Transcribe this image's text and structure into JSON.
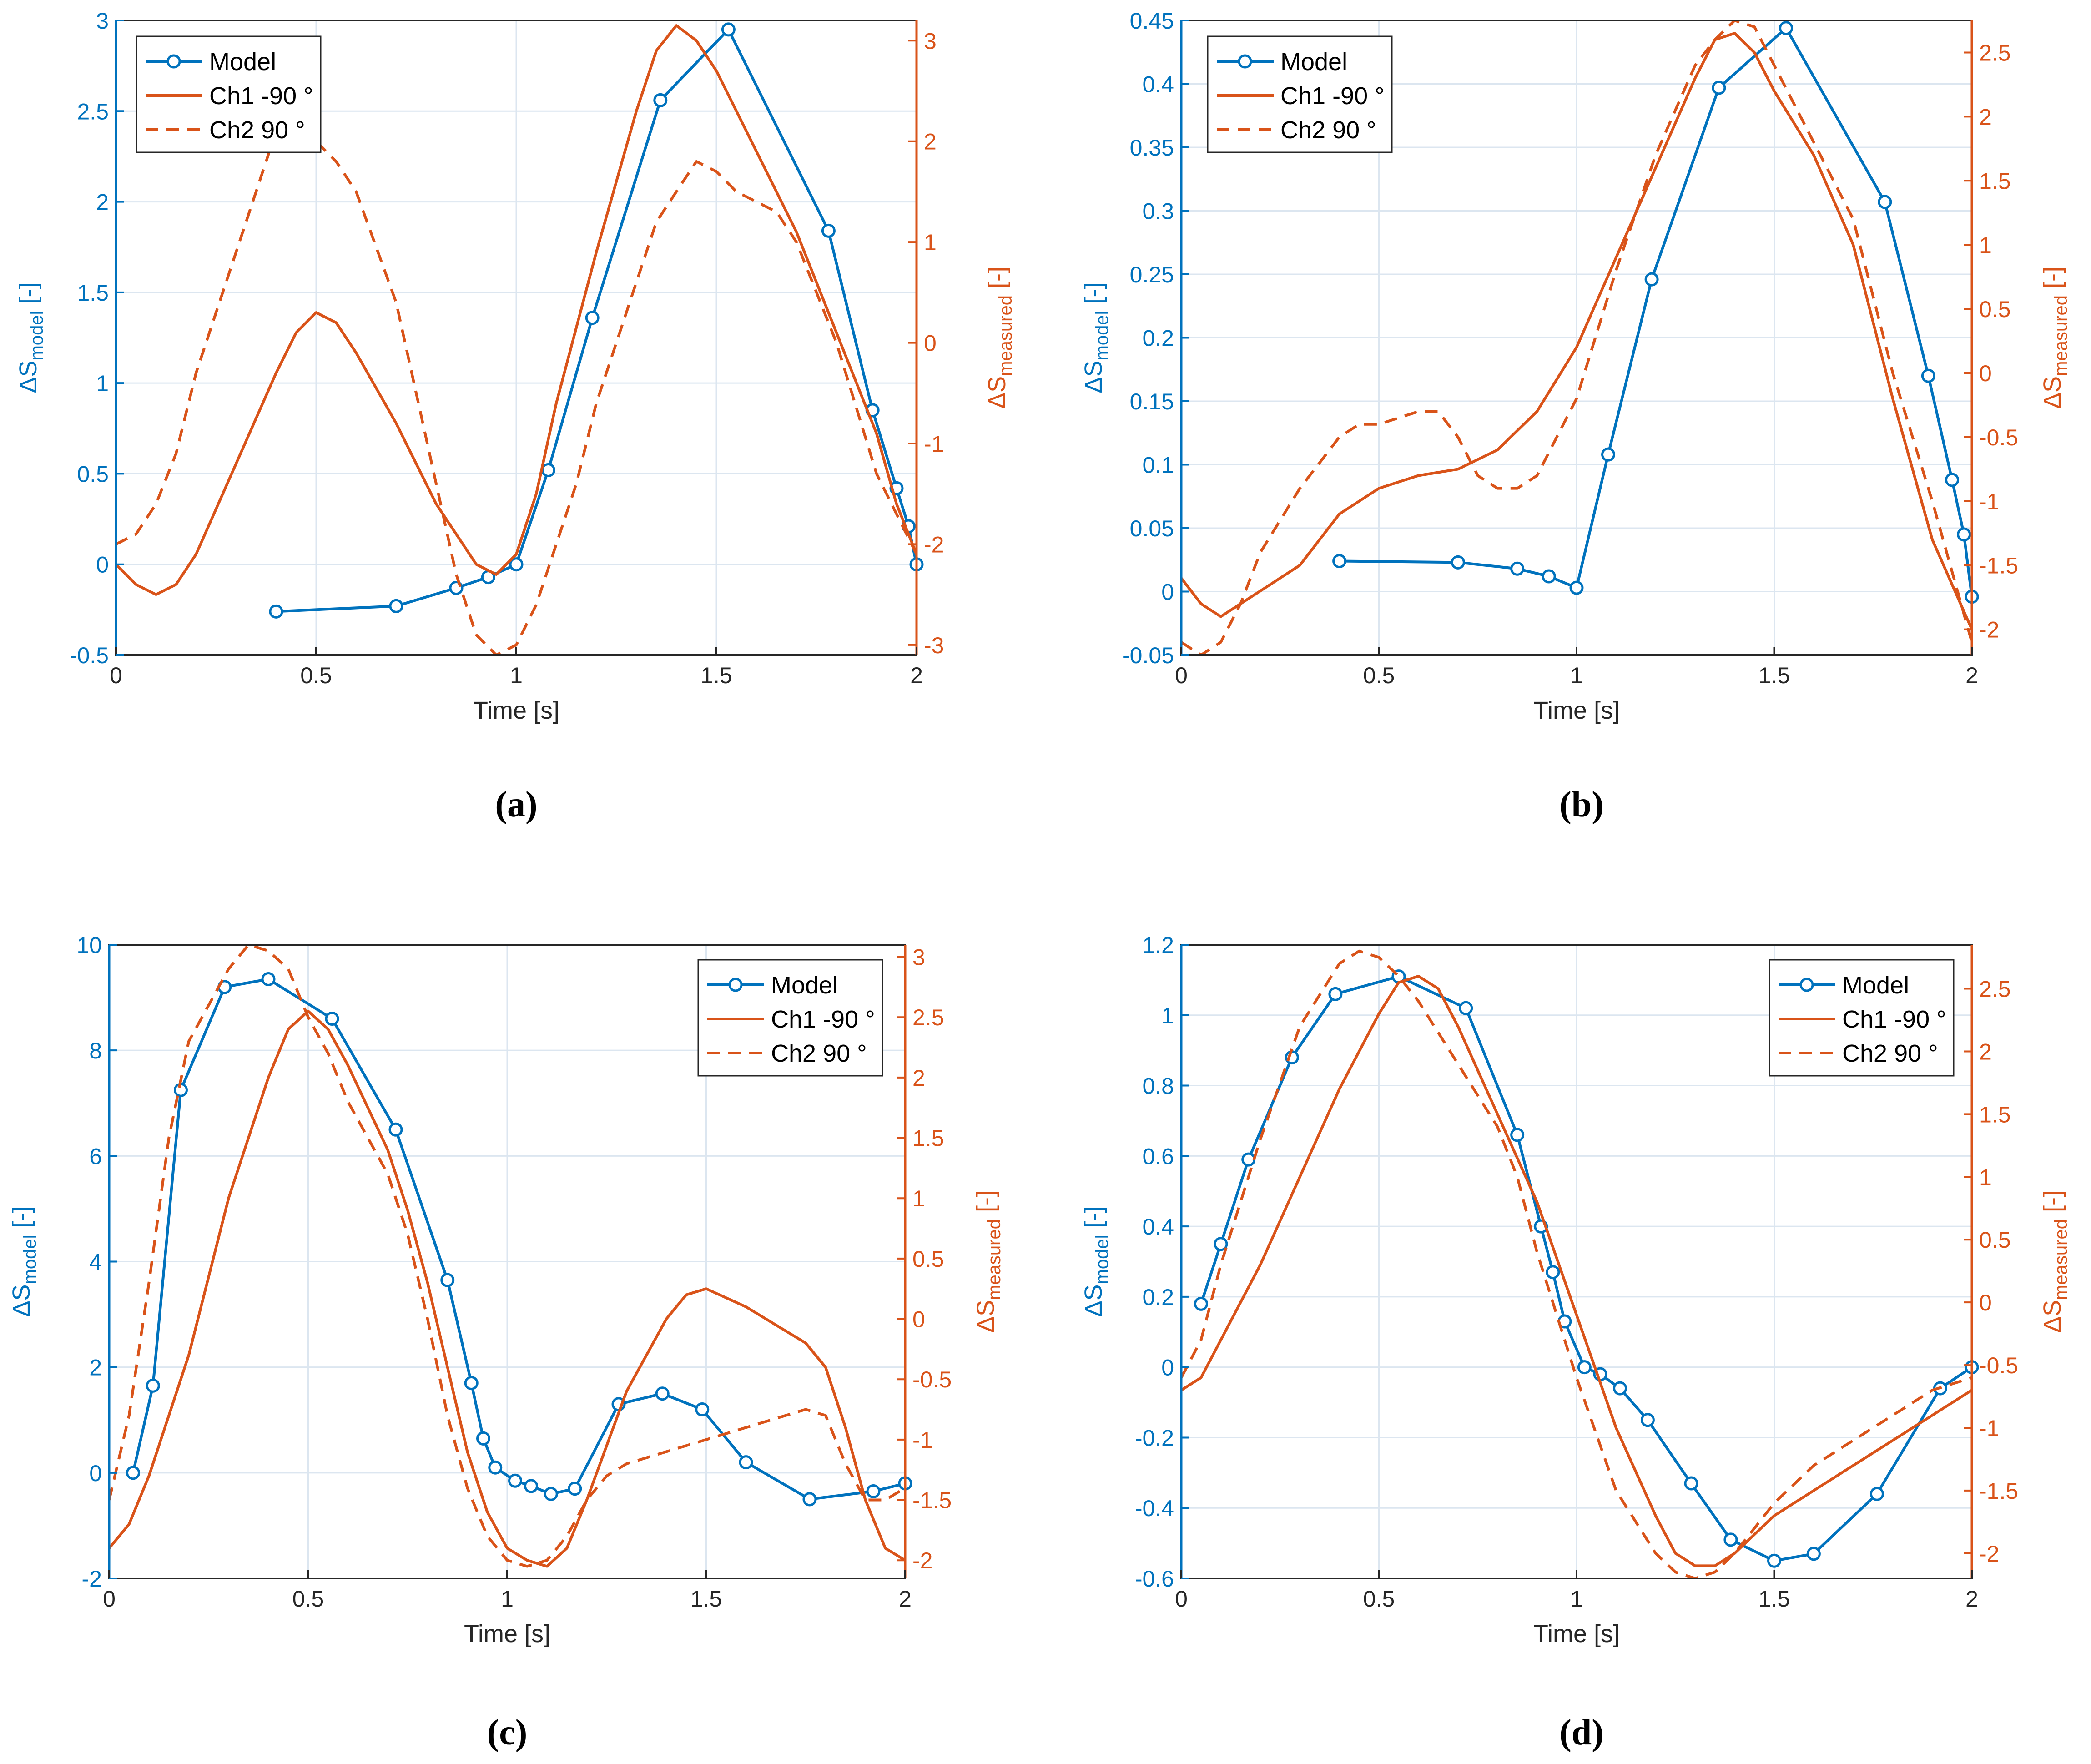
{
  "colors": {
    "model": "#0072BD",
    "measured": "#D95319",
    "grid": "#DCE6F0",
    "axis": "#262626"
  },
  "chart_data": [
    {
      "type": "line",
      "panel": "(a)",
      "xlabel": "Time [s]",
      "ylabel_left": "ΔS",
      "ylabel_left_sub": "model",
      "ylabel_right": "ΔS",
      "ylabel_right_sub": "measured",
      "unit": "[-]",
      "xlim": [
        0,
        2
      ],
      "xticks": [
        0,
        0.5,
        1,
        1.5,
        2
      ],
      "xtick_labels": [
        "0",
        "0.5",
        "1",
        "1.5",
        "2"
      ],
      "ylim_left": [
        -0.5,
        3
      ],
      "yticks_left": [
        -0.5,
        0,
        0.5,
        1,
        1.5,
        2,
        2.5,
        3
      ],
      "ytick_labels_left": [
        "-0.5",
        "0",
        "0.5",
        "1",
        "1.5",
        "2",
        "2.5",
        "3"
      ],
      "ylim_right": [
        -3.1,
        3.2
      ],
      "yticks_right": [
        -3,
        -2,
        -1,
        0,
        1,
        2,
        3
      ],
      "ytick_labels_right": [
        "-3",
        "-2",
        "-1",
        "0",
        "1",
        "2",
        "3"
      ],
      "legend_position": "top-left",
      "legend": [
        "Model",
        "Ch1 -90 °",
        "Ch2  90 °"
      ],
      "series": [
        {
          "name": "Model",
          "axis": "left",
          "style": "line-marker",
          "x": [
            0.4,
            0.7,
            0.85,
            0.93,
            1.0,
            1.08,
            1.19,
            1.36,
            1.53,
            1.78,
            1.89,
            1.95,
            1.98,
            2.0
          ],
          "y": [
            -0.26,
            -0.23,
            -0.13,
            -0.07,
            0.0,
            0.52,
            1.36,
            2.56,
            2.95,
            1.84,
            0.85,
            0.42,
            0.21,
            0.0
          ]
        },
        {
          "name": "Ch1 -90 °",
          "axis": "right",
          "style": "solid",
          "x": [
            0,
            0.05,
            0.1,
            0.15,
            0.2,
            0.3,
            0.4,
            0.45,
            0.5,
            0.55,
            0.6,
            0.7,
            0.8,
            0.85,
            0.9,
            0.95,
            1.0,
            1.05,
            1.1,
            1.2,
            1.3,
            1.35,
            1.4,
            1.45,
            1.5,
            1.6,
            1.7,
            1.8,
            1.9,
            1.95,
            2.0
          ],
          "y": [
            -2.2,
            -2.4,
            -2.5,
            -2.4,
            -2.1,
            -1.2,
            -0.3,
            0.1,
            0.3,
            0.2,
            -0.1,
            -0.8,
            -1.6,
            -1.9,
            -2.2,
            -2.3,
            -2.1,
            -1.5,
            -0.6,
            0.9,
            2.3,
            2.9,
            3.15,
            3.0,
            2.7,
            1.9,
            1.1,
            0.1,
            -0.9,
            -1.6,
            -2.1
          ]
        },
        {
          "name": "Ch2  90 °",
          "axis": "right",
          "style": "dashed",
          "x": [
            0,
            0.05,
            0.1,
            0.15,
            0.2,
            0.25,
            0.3,
            0.35,
            0.4,
            0.45,
            0.5,
            0.55,
            0.6,
            0.7,
            0.75,
            0.8,
            0.85,
            0.9,
            0.95,
            1.0,
            1.05,
            1.1,
            1.15,
            1.2,
            1.3,
            1.35,
            1.4,
            1.45,
            1.5,
            1.55,
            1.6,
            1.65,
            1.7,
            1.8,
            1.9,
            2.0
          ],
          "y": [
            -2.0,
            -1.9,
            -1.6,
            -1.1,
            -0.3,
            0.3,
            0.9,
            1.5,
            2.1,
            2.2,
            2.0,
            1.8,
            1.5,
            0.4,
            -0.5,
            -1.4,
            -2.3,
            -2.9,
            -3.1,
            -3.0,
            -2.6,
            -2.0,
            -1.4,
            -0.6,
            0.6,
            1.2,
            1.5,
            1.8,
            1.7,
            1.5,
            1.4,
            1.3,
            1.0,
            0.0,
            -1.3,
            -2.1
          ]
        }
      ]
    },
    {
      "type": "line",
      "panel": "(b)",
      "xlabel": "Time [s]",
      "ylabel_left": "ΔS",
      "ylabel_left_sub": "model",
      "ylabel_right": "ΔS",
      "ylabel_right_sub": "measured",
      "unit": "[-]",
      "xlim": [
        0,
        2
      ],
      "xticks": [
        0,
        0.5,
        1,
        1.5,
        2
      ],
      "xtick_labels": [
        "0",
        "0.5",
        "1",
        "1.5",
        "2"
      ],
      "ylim_left": [
        -0.05,
        0.45
      ],
      "yticks_left": [
        -0.05,
        0,
        0.05,
        0.1,
        0.15,
        0.2,
        0.25,
        0.3,
        0.35,
        0.4,
        0.45
      ],
      "ytick_labels_left": [
        "-0.05",
        "0",
        "0.05",
        "0.1",
        "0.15",
        "0.2",
        "0.25",
        "0.3",
        "0.35",
        "0.4",
        "0.45"
      ],
      "ylim_right": [
        -2.2,
        2.75
      ],
      "yticks_right": [
        -2,
        -1.5,
        -1,
        -0.5,
        0,
        0.5,
        1,
        1.5,
        2,
        2.5
      ],
      "ytick_labels_right": [
        "-2",
        "-1.5",
        "-1",
        "-0.5",
        "0",
        "0.5",
        "1",
        "1.5",
        "2",
        "2.5"
      ],
      "legend_position": "top-left",
      "legend": [
        "Model",
        "Ch1 -90 °",
        "Ch2  90 °"
      ],
      "series": [
        {
          "name": "Model",
          "axis": "left",
          "style": "line-marker",
          "x": [
            0.4,
            0.7,
            0.85,
            0.93,
            1.0,
            1.08,
            1.19,
            1.36,
            1.53,
            1.78,
            1.89,
            1.95,
            1.98,
            2.0
          ],
          "y": [
            0.024,
            0.023,
            0.018,
            0.012,
            0.003,
            0.108,
            0.246,
            0.397,
            0.444,
            0.307,
            0.17,
            0.088,
            0.045,
            -0.004
          ]
        },
        {
          "name": "Ch1 -90 °",
          "axis": "right",
          "style": "solid",
          "x": [
            0,
            0.05,
            0.1,
            0.15,
            0.2,
            0.3,
            0.4,
            0.5,
            0.6,
            0.7,
            0.8,
            0.9,
            1.0,
            1.1,
            1.2,
            1.3,
            1.35,
            1.4,
            1.45,
            1.5,
            1.6,
            1.7,
            1.8,
            1.9,
            2.0
          ],
          "y": [
            -1.6,
            -1.8,
            -1.9,
            -1.8,
            -1.7,
            -1.5,
            -1.1,
            -0.9,
            -0.8,
            -0.75,
            -0.6,
            -0.3,
            0.2,
            0.9,
            1.6,
            2.3,
            2.6,
            2.65,
            2.5,
            2.2,
            1.7,
            1.0,
            -0.2,
            -1.3,
            -2.0
          ]
        },
        {
          "name": "Ch2  90 °",
          "axis": "right",
          "style": "dashed",
          "x": [
            0,
            0.05,
            0.1,
            0.15,
            0.2,
            0.3,
            0.4,
            0.45,
            0.5,
            0.6,
            0.65,
            0.7,
            0.75,
            0.8,
            0.85,
            0.9,
            1.0,
            1.1,
            1.2,
            1.3,
            1.35,
            1.4,
            1.45,
            1.5,
            1.6,
            1.7,
            1.8,
            1.9,
            2.0
          ],
          "y": [
            -2.1,
            -2.2,
            -2.1,
            -1.8,
            -1.4,
            -0.9,
            -0.5,
            -0.4,
            -0.4,
            -0.3,
            -0.3,
            -0.5,
            -0.8,
            -0.9,
            -0.9,
            -0.8,
            -0.2,
            0.8,
            1.7,
            2.4,
            2.6,
            2.75,
            2.7,
            2.4,
            1.8,
            1.2,
            0.0,
            -1.0,
            -2.1
          ]
        }
      ]
    },
    {
      "type": "line",
      "panel": "(c)",
      "xlabel": "Time [s]",
      "ylabel_left": "ΔS",
      "ylabel_left_sub": "model",
      "ylabel_right": "ΔS",
      "ylabel_right_sub": "measured",
      "unit": "[-]",
      "xlim": [
        0,
        2
      ],
      "xticks": [
        0,
        0.5,
        1,
        1.5,
        2
      ],
      "xtick_labels": [
        "0",
        "0.5",
        "1",
        "1.5",
        "2"
      ],
      "ylim_left": [
        -2,
        10
      ],
      "yticks_left": [
        -2,
        0,
        2,
        4,
        6,
        8,
        10
      ],
      "ytick_labels_left": [
        "-2",
        "0",
        "2",
        "4",
        "6",
        "8",
        "10"
      ],
      "ylim_right": [
        -2.15,
        3.1
      ],
      "yticks_right": [
        -2,
        -1.5,
        -1,
        -0.5,
        0,
        0.5,
        1,
        1.5,
        2,
        2.5,
        3
      ],
      "ytick_labels_right": [
        "-2",
        "-1.5",
        "-1",
        "-0.5",
        "0",
        "0.5",
        "1",
        "1.5",
        "2",
        "2.5",
        "3"
      ],
      "legend_position": "top-right",
      "legend": [
        "Model",
        "Ch1 -90 °",
        "Ch2  90 °"
      ],
      "series": [
        {
          "name": "Model",
          "axis": "left",
          "style": "line-marker",
          "x": [
            0.06,
            0.11,
            0.18,
            0.29,
            0.4,
            0.56,
            0.72,
            0.85,
            0.91,
            0.94,
            0.97,
            1.02,
            1.06,
            1.11,
            1.17,
            1.28,
            1.39,
            1.49,
            1.6,
            1.76,
            1.92,
            2.0
          ],
          "y": [
            0.0,
            1.65,
            7.25,
            9.2,
            9.35,
            8.6,
            6.5,
            3.65,
            1.7,
            0.65,
            0.1,
            -0.15,
            -0.25,
            -0.4,
            -0.3,
            1.3,
            1.5,
            1.2,
            0.2,
            -0.5,
            -0.35,
            -0.2
          ]
        },
        {
          "name": "Ch1 -90 °",
          "axis": "right",
          "style": "solid",
          "x": [
            0,
            0.05,
            0.1,
            0.2,
            0.3,
            0.4,
            0.45,
            0.5,
            0.55,
            0.6,
            0.7,
            0.75,
            0.8,
            0.85,
            0.9,
            0.95,
            1.0,
            1.05,
            1.1,
            1.15,
            1.2,
            1.3,
            1.4,
            1.45,
            1.5,
            1.6,
            1.7,
            1.75,
            1.8,
            1.85,
            1.9,
            1.95,
            2.0
          ],
          "y": [
            -1.9,
            -1.7,
            -1.3,
            -0.3,
            1.0,
            2.0,
            2.4,
            2.55,
            2.4,
            2.1,
            1.4,
            0.9,
            0.3,
            -0.4,
            -1.1,
            -1.6,
            -1.9,
            -2.0,
            -2.05,
            -1.9,
            -1.5,
            -0.6,
            0.0,
            0.2,
            0.25,
            0.1,
            -0.1,
            -0.2,
            -0.4,
            -0.9,
            -1.5,
            -1.9,
            -2.0
          ]
        },
        {
          "name": "Ch2  90 °",
          "axis": "right",
          "style": "dashed",
          "x": [
            0,
            0.05,
            0.1,
            0.15,
            0.2,
            0.3,
            0.35,
            0.4,
            0.45,
            0.5,
            0.55,
            0.6,
            0.7,
            0.75,
            0.8,
            0.85,
            0.9,
            0.95,
            1.0,
            1.05,
            1.1,
            1.15,
            1.2,
            1.25,
            1.3,
            1.4,
            1.5,
            1.6,
            1.7,
            1.75,
            1.8,
            1.85,
            1.9,
            1.95,
            2.0
          ],
          "y": [
            -1.5,
            -0.8,
            0.3,
            1.5,
            2.3,
            2.9,
            3.1,
            3.05,
            2.9,
            2.5,
            2.2,
            1.8,
            1.2,
            0.7,
            0.0,
            -0.8,
            -1.4,
            -1.8,
            -2.0,
            -2.05,
            -2.0,
            -1.8,
            -1.5,
            -1.3,
            -1.2,
            -1.1,
            -1.0,
            -0.9,
            -0.8,
            -0.75,
            -0.8,
            -1.2,
            -1.5,
            -1.5,
            -1.4
          ]
        }
      ]
    },
    {
      "type": "line",
      "panel": "(d)",
      "xlabel": "Time [s]",
      "ylabel_left": "ΔS",
      "ylabel_left_sub": "model",
      "ylabel_right": "ΔS",
      "ylabel_right_sub": "measured",
      "unit": "[-]",
      "xlim": [
        0,
        2
      ],
      "xticks": [
        0,
        0.5,
        1,
        1.5,
        2
      ],
      "xtick_labels": [
        "0",
        "0.5",
        "1",
        "1.5",
        "2"
      ],
      "ylim_left": [
        -0.6,
        1.2
      ],
      "yticks_left": [
        -0.6,
        -0.4,
        -0.2,
        0,
        0.2,
        0.4,
        0.6,
        0.8,
        1,
        1.2
      ],
      "ytick_labels_left": [
        "-0.6",
        "-0.4",
        "-0.2",
        "0",
        "0.2",
        "0.4",
        "0.6",
        "0.8",
        "1",
        "1.2"
      ],
      "ylim_right": [
        -2.2,
        2.85
      ],
      "yticks_right": [
        -2,
        -1.5,
        -1,
        -0.5,
        0,
        0.5,
        1,
        1.5,
        2,
        2.5
      ],
      "ytick_labels_right": [
        "-2",
        "-1.5",
        "-1",
        "-0.5",
        "0",
        "0.5",
        "1",
        "1.5",
        "2",
        "2.5"
      ],
      "legend_position": "top-right",
      "legend": [
        "Model",
        "Ch1 -90 °",
        "Ch2  90 °"
      ],
      "series": [
        {
          "name": "Model",
          "axis": "left",
          "style": "line-marker",
          "x": [
            0.05,
            0.1,
            0.17,
            0.28,
            0.39,
            0.55,
            0.72,
            0.85,
            0.91,
            0.94,
            0.97,
            1.02,
            1.06,
            1.11,
            1.18,
            1.29,
            1.39,
            1.5,
            1.6,
            1.76,
            1.92,
            2.0
          ],
          "y": [
            0.18,
            0.35,
            0.59,
            0.88,
            1.06,
            1.11,
            1.02,
            0.66,
            0.4,
            0.27,
            0.13,
            0.0,
            -0.02,
            -0.06,
            -0.15,
            -0.33,
            -0.49,
            -0.55,
            -0.53,
            -0.36,
            -0.06,
            0.0
          ]
        },
        {
          "name": "Ch1 -90 °",
          "axis": "right",
          "style": "solid",
          "x": [
            0,
            0.05,
            0.1,
            0.2,
            0.3,
            0.4,
            0.5,
            0.55,
            0.6,
            0.65,
            0.7,
            0.8,
            0.9,
            1.0,
            1.1,
            1.2,
            1.25,
            1.3,
            1.35,
            1.4,
            1.5,
            1.6,
            1.7,
            1.8,
            1.9,
            2.0
          ],
          "y": [
            -0.7,
            -0.6,
            -0.3,
            0.3,
            1.0,
            1.7,
            2.3,
            2.55,
            2.6,
            2.5,
            2.2,
            1.5,
            0.8,
            -0.1,
            -1.0,
            -1.7,
            -2.0,
            -2.1,
            -2.1,
            -2.0,
            -1.7,
            -1.5,
            -1.3,
            -1.1,
            -0.9,
            -0.7
          ]
        },
        {
          "name": "Ch2  90 °",
          "axis": "right",
          "style": "dashed",
          "x": [
            0,
            0.05,
            0.1,
            0.2,
            0.3,
            0.4,
            0.45,
            0.5,
            0.55,
            0.6,
            0.7,
            0.8,
            0.85,
            0.9,
            1.0,
            1.1,
            1.2,
            1.25,
            1.3,
            1.35,
            1.4,
            1.5,
            1.6,
            1.7,
            1.8,
            1.9,
            2.0
          ],
          "y": [
            -0.6,
            -0.3,
            0.3,
            1.3,
            2.2,
            2.7,
            2.8,
            2.75,
            2.6,
            2.4,
            1.9,
            1.4,
            1.0,
            0.4,
            -0.6,
            -1.5,
            -2.0,
            -2.15,
            -2.2,
            -2.15,
            -2.0,
            -1.6,
            -1.3,
            -1.1,
            -0.9,
            -0.7,
            -0.6
          ]
        }
      ]
    }
  ]
}
